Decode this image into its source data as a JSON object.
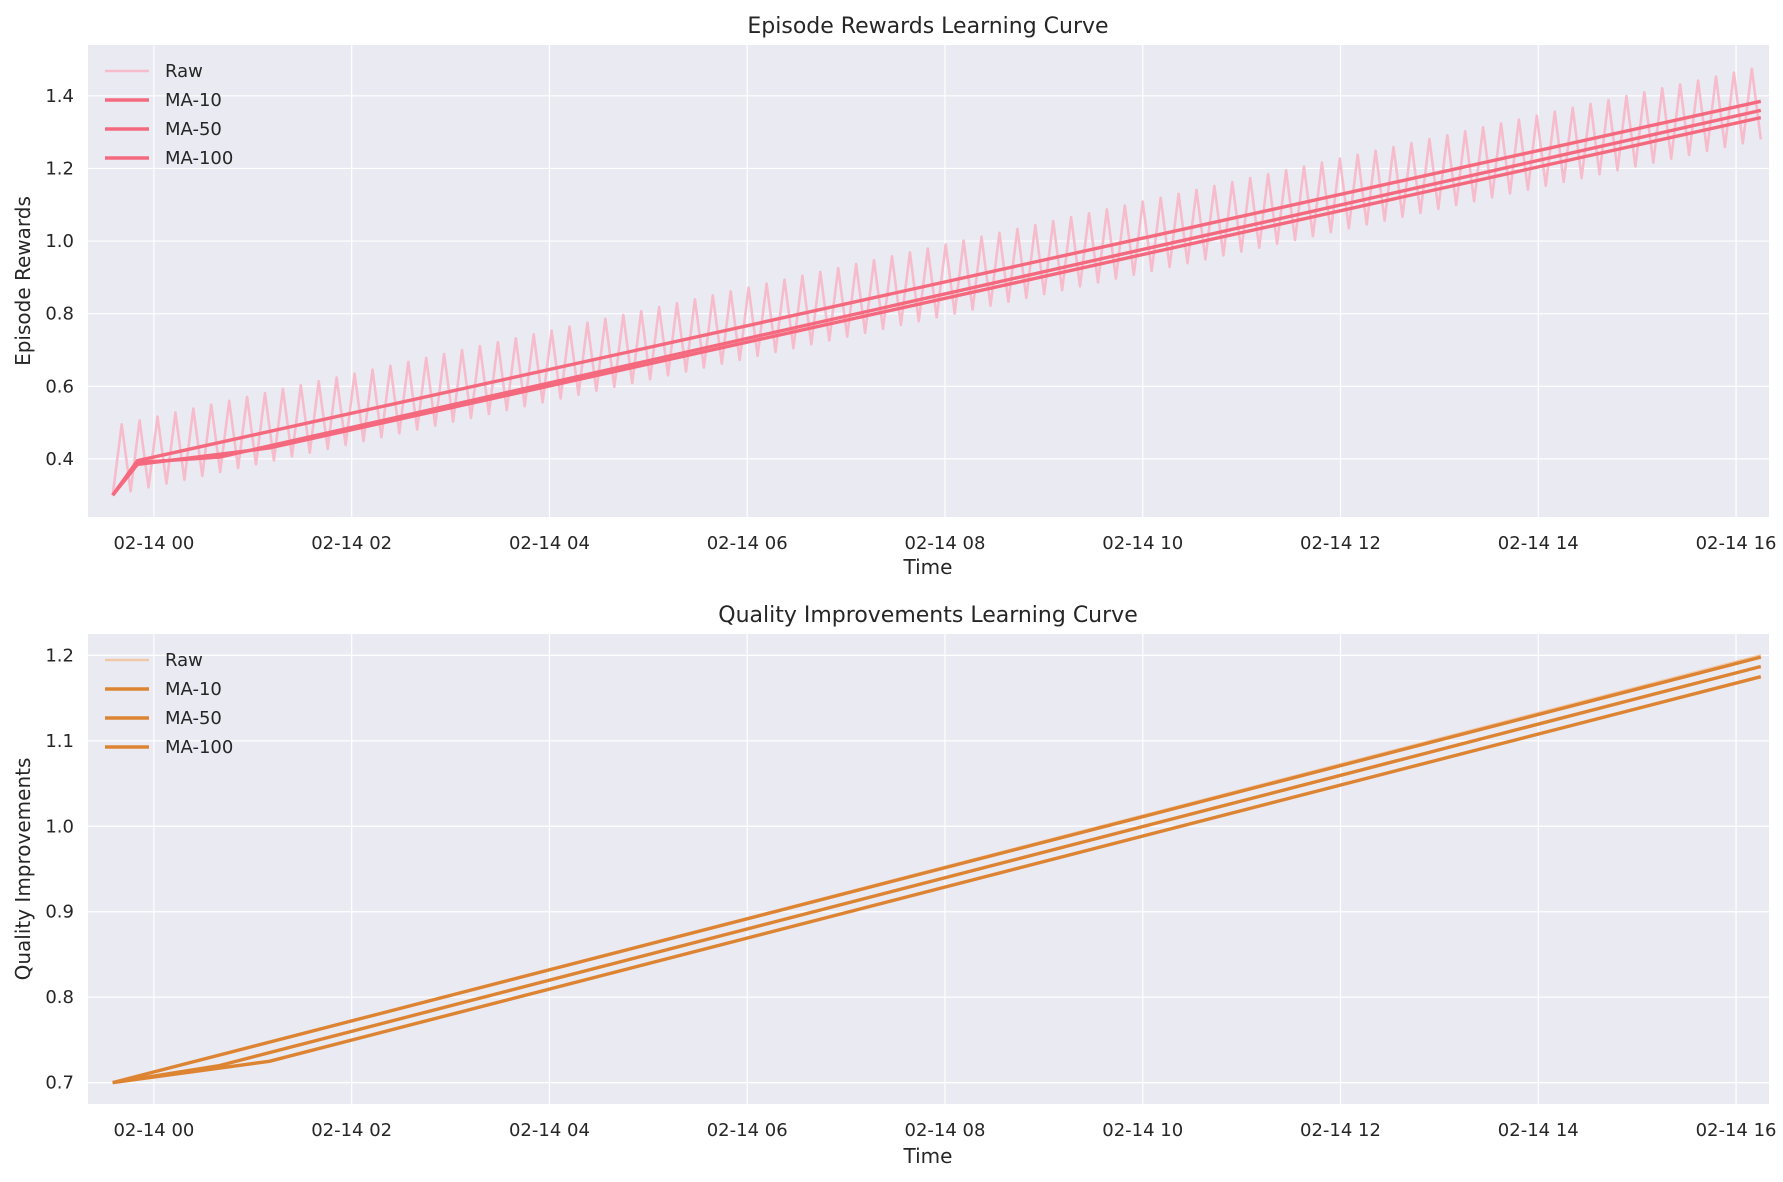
{
  "chart_data": [
    {
      "type": "line",
      "title": "Episode Rewards Learning Curve",
      "xlabel": "Time",
      "ylabel": "Episode Rewards",
      "x_range": [
        "2023-02-13T23:20",
        "2023-02-14T16:20"
      ],
      "ylim": [
        0.24,
        1.54
      ],
      "x_ticks": [
        "02-14 00",
        "02-14 02",
        "02-14 04",
        "02-14 06",
        "02-14 08",
        "02-14 10",
        "02-14 12",
        "02-14 14",
        "02-14 16"
      ],
      "y_ticks": [
        "0.4",
        "0.6",
        "0.8",
        "1.0",
        "1.2",
        "1.4"
      ],
      "grid": true,
      "legend_position": "upper-left",
      "colors": {
        "raw": "#f7bccb",
        "ma": "#f5697f"
      },
      "raw": {
        "x_start": "2023-02-13T23:35",
        "x_end": "2023-02-14T16:15",
        "y_min_start": 0.3,
        "y_min_end": 1.28,
        "y_max_start": 0.49,
        "y_max_end": 1.48,
        "cycles": 92
      },
      "series": [
        {
          "name": "Raw",
          "kind": "raw"
        },
        {
          "name": "MA-10",
          "kind": "ma",
          "points": [
            [
              "2023-02-13T23:35",
              0.3
            ],
            [
              "2023-02-13T23:50",
              0.395
            ],
            [
              "2023-02-14T16:15",
              1.385
            ]
          ]
        },
        {
          "name": "MA-50",
          "kind": "ma",
          "points": [
            [
              "2023-02-13T23:35",
              0.3
            ],
            [
              "2023-02-13T23:50",
              0.39
            ],
            [
              "2023-02-14T00:40",
              0.405
            ],
            [
              "2023-02-14T16:15",
              1.36
            ]
          ]
        },
        {
          "name": "MA-100",
          "kind": "ma",
          "points": [
            [
              "2023-02-13T23:35",
              0.3
            ],
            [
              "2023-02-13T23:50",
              0.385
            ],
            [
              "2023-02-14T01:10",
              0.43
            ],
            [
              "2023-02-14T16:15",
              1.34
            ]
          ]
        }
      ]
    },
    {
      "type": "line",
      "title": "Quality Improvements Learning Curve",
      "xlabel": "Time",
      "ylabel": "Quality Improvements",
      "x_range": [
        "2023-02-13T23:20",
        "2023-02-14T16:20"
      ],
      "ylim": [
        0.675,
        1.225
      ],
      "x_ticks": [
        "02-14 00",
        "02-14 02",
        "02-14 04",
        "02-14 06",
        "02-14 08",
        "02-14 10",
        "02-14 12",
        "02-14 14",
        "02-14 16"
      ],
      "y_ticks": [
        "0.7",
        "0.8",
        "0.9",
        "1.0",
        "1.1",
        "1.2"
      ],
      "grid": true,
      "legend_position": "upper-left",
      "colors": {
        "raw": "#f0c8a8",
        "ma": "#dd8433"
      },
      "series": [
        {
          "name": "Raw",
          "kind": "raw",
          "points": [
            [
              "2023-02-13T23:35",
              0.7
            ],
            [
              "2023-02-14T16:15",
              1.2
            ]
          ]
        },
        {
          "name": "MA-10",
          "kind": "ma",
          "points": [
            [
              "2023-02-13T23:35",
              0.7
            ],
            [
              "2023-02-14T16:15",
              1.198
            ]
          ]
        },
        {
          "name": "MA-50",
          "kind": "ma",
          "points": [
            [
              "2023-02-13T23:35",
              0.7
            ],
            [
              "2023-02-14T00:40",
              0.72
            ],
            [
              "2023-02-14T16:15",
              1.187
            ]
          ]
        },
        {
          "name": "MA-100",
          "kind": "ma",
          "points": [
            [
              "2023-02-13T23:35",
              0.7
            ],
            [
              "2023-02-14T01:10",
              0.725
            ],
            [
              "2023-02-14T16:15",
              1.175
            ]
          ]
        }
      ]
    }
  ]
}
